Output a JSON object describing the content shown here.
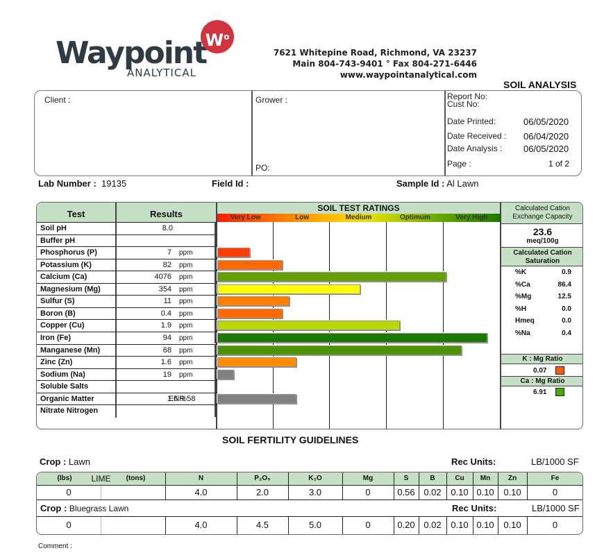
{
  "header": {
    "logo_word": "Waypoint",
    "logo_sub": "ANALYTICAL",
    "logo_badge": "W",
    "address": "7621 Whitepine Road, Richmond, VA 23237",
    "phone": "Main 804-743-9401 ° Fax 804-271-6446",
    "website": "www.waypointanalytical.com",
    "title": "SOIL ANALYSIS",
    "brand_color": "#d1343c"
  },
  "info": {
    "client_label": "Client :",
    "grower_label": "Grower :",
    "po_label": "PO:",
    "report_no_label": "Report No:",
    "cust_no_label": "Cust No:",
    "date_printed_label": "Date Printed:",
    "date_printed": "06/05/2020",
    "date_received_label": "Date Received :",
    "date_received": "06/04/2020",
    "date_analysis_label": "Date Analysis :",
    "date_analysis": "06/05/2020",
    "page_label": "Page :",
    "page": "1 of 2"
  },
  "lab": {
    "lab_number_label": "Lab Number :",
    "lab_number": "19135",
    "field_id_label": "Field Id :",
    "field_id": "",
    "sample_id_label": "Sample Id :",
    "sample_id": "Al Lawn"
  },
  "ratings": {
    "test_header": "Test",
    "results_header": "Results",
    "ratings_header": "SOIL TEST RATINGS",
    "scale": [
      "Very Low",
      "Low",
      "Medium",
      "Optimum",
      "Very High"
    ]
  },
  "chart_data": {
    "type": "bar",
    "title": "SOIL TEST RATINGS",
    "categories": [
      "Very Low",
      "Low",
      "Medium",
      "Optimum",
      "Very High"
    ],
    "rows": [
      {
        "test": "Soil pH",
        "result": "8.0",
        "unit": "",
        "bar_pct": 0,
        "color": ""
      },
      {
        "test": "Buffer pH",
        "result": "",
        "unit": "",
        "bar_pct": 0,
        "color": ""
      },
      {
        "test": "Phosphorus (P)",
        "result": "7",
        "unit": "ppm",
        "bar_pct": 11.5,
        "color": "#ff3c00"
      },
      {
        "test": "Potassium (K)",
        "result": "82",
        "unit": "ppm",
        "bar_pct": 23,
        "color": "#ff6a00"
      },
      {
        "test": "Calcium (Ca)",
        "result": "4076",
        "unit": "ppm",
        "bar_pct": 81,
        "color": "#63a000"
      },
      {
        "test": "Magnesium (Mg)",
        "result": "354",
        "unit": "ppm",
        "bar_pct": 50.5,
        "color": "#ffff00"
      },
      {
        "test": "Sulfur (S)",
        "result": "11",
        "unit": "ppm",
        "bar_pct": 25.5,
        "color": "#ff8000"
      },
      {
        "test": "Boron (B)",
        "result": "0.4",
        "unit": "ppm",
        "bar_pct": 23,
        "color": "#ff6a00"
      },
      {
        "test": "Copper (Cu)",
        "result": "1.9",
        "unit": "ppm",
        "bar_pct": 64.5,
        "color": "#bcd800"
      },
      {
        "test": "Iron (Fe)",
        "result": "94",
        "unit": "ppm",
        "bar_pct": 95.5,
        "color": "#1a7a00"
      },
      {
        "test": "Manganese (Mn)",
        "result": "68",
        "unit": "ppm",
        "bar_pct": 86.5,
        "color": "#4a9400"
      },
      {
        "test": "Zinc (Zn)",
        "result": "1.6",
        "unit": "ppm",
        "bar_pct": 28,
        "color": "#ff8c00"
      },
      {
        "test": "Sodium (Na)",
        "result": "19",
        "unit": "ppm",
        "bar_pct": 6,
        "color": "#808080"
      },
      {
        "test": "Soluble Salts",
        "result": "",
        "unit": "",
        "bar_pct": 0,
        "color": ""
      },
      {
        "test": "Organic Matter",
        "result": "1.6 %",
        "unit": "ENR  58",
        "bar_pct": 28,
        "color": "#808080"
      },
      {
        "test": "Nitrate Nitrogen",
        "result": "",
        "unit": "",
        "bar_pct": 0,
        "color": ""
      }
    ]
  },
  "cec": {
    "header": "Calculated Cation Exchange Capacity",
    "value": "23.6",
    "unit": "meq/100g",
    "sat_header": "Calculated Cation Saturation",
    "items": [
      {
        "label": "%K",
        "value": "0.9"
      },
      {
        "label": "%Ca",
        "value": "86.4"
      },
      {
        "label": "%Mg",
        "value": "12.5"
      },
      {
        "label": "%H",
        "value": "0.0"
      },
      {
        "label": "Hmeq",
        "value": "0.0"
      },
      {
        "label": "%Na",
        "value": "0.4"
      }
    ],
    "k_mg_label": "K : Mg Ratio",
    "k_mg_value": "0.07",
    "k_mg_color": "#ff5a00",
    "ca_mg_label": "Ca : Mg Ratio",
    "ca_mg_value": "6.91",
    "ca_mg_color": "#4aa800"
  },
  "fertility": {
    "title": "SOIL FERTILITY GUIDELINES",
    "crop_label": "Crop :",
    "rec_units_label": "Rec Units:",
    "rec_units": "LB/1000 SF",
    "headers": {
      "lbs": "(lbs)",
      "lime": "LIME",
      "tons": "(tons)",
      "n": "N",
      "p2o5": "P₂O₅",
      "k2o": "K₂O",
      "mg": "Mg",
      "s": "S",
      "b": "B",
      "cu": "Cu",
      "mn": "Mn",
      "zn": "Zn",
      "fe": "Fe"
    },
    "crops": [
      {
        "name": "Lawn",
        "values": [
          "0",
          "",
          "4.0",
          "2.0",
          "3.0",
          "0",
          "0.56",
          "0.02",
          "0.10",
          "0.10",
          "0.10",
          "0"
        ]
      },
      {
        "name": "Bluegrass Lawn",
        "values": [
          "0",
          "",
          "4.0",
          "4.5",
          "5.0",
          "0",
          "0.20",
          "0.02",
          "0.10",
          "0.10",
          "0.10",
          "0"
        ]
      }
    ],
    "comment_label": "Comment :"
  }
}
